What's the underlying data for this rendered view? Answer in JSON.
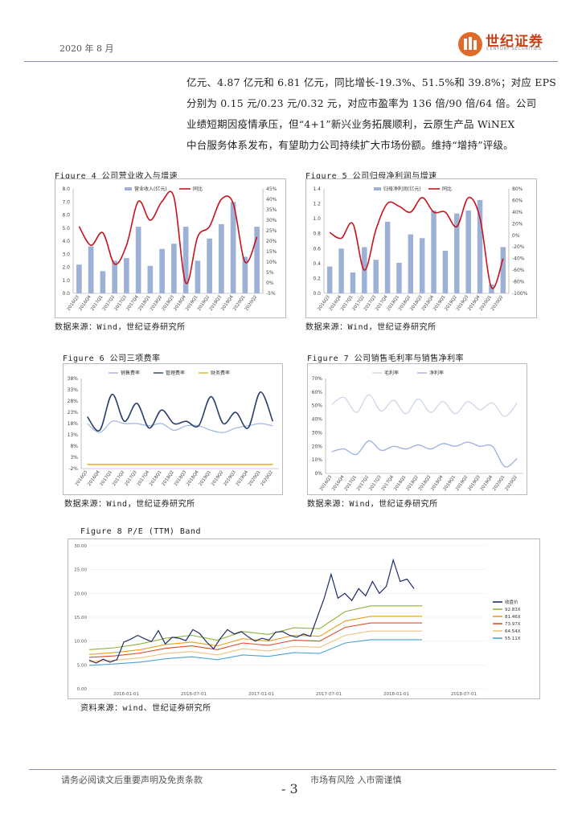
{
  "header": {
    "date": "2020 年 8 月",
    "logo_text": "世纪证券",
    "logo_sub": "CENTURY SECURITIES"
  },
  "paragraph": [
    "亿元、4.87 亿元和 6.81 亿元，同比增长-19.3%、51.5%和 39.8%；对应 EPS",
    "分别为 0.15 元/0.23 元/0.32 元，对应市盈率为 136 倍/90 倍/64 倍。公司",
    "业绩短期因疫情承压，但“4+1”新兴业务拓展顺利，云原生产品 WiNEX",
    "中台服务体系发布，有望助力公司持续扩大市场份额。维持“增持”评级。"
  ],
  "figures": {
    "fig4_title": "Figure 4 公司营业收入与增速",
    "fig5_title": "Figure 5 公司归母净利润与增速",
    "fig6_title": "Figure 6 公司三项费率",
    "fig7_title": "Figure 7 公司销售毛利率与销售净利率",
    "fig8_title": "Figure 8 P/E (TTM) Band",
    "src_a": "数据来源：Wind，世纪证券研究所",
    "src_b": "数据来源：Wind，世纪证券研究所",
    "src_c": "数据来源：Wind，世纪证券研究所",
    "src_d": "数据来源：Wind，世纪证券研究所",
    "src_e": "资料来源：wind、世纪证券研究所"
  },
  "footer": {
    "left": "请务必阅读文后重要声明及免责条款",
    "right": "市场有风险 入市需谨慎",
    "page": "- 3"
  },
  "colors": {
    "bar": "#9db0d6",
    "line_red": "#c8141e",
    "dark_blue": "#2b3f6b",
    "light_blue": "#9fb6e0",
    "gold": "#e6b325"
  },
  "chart_data": [
    {
      "id": "fig4",
      "type": "bar+line",
      "categories": [
        "2016Q3",
        "2016Q4",
        "2017Q1",
        "2017Q2",
        "2017Q3",
        "2017Q4",
        "2018Q1",
        "2018Q2",
        "2018Q3",
        "2018Q4",
        "2019Q1",
        "2019Q2",
        "2019Q3",
        "2019Q4",
        "2020Q1",
        "2020Q2"
      ],
      "series": [
        {
          "name": "营业收入(亿元)",
          "axis": "left",
          "values": [
            2.2,
            3.6,
            1.7,
            2.5,
            2.7,
            5.1,
            2.1,
            3.4,
            3.8,
            5.1,
            2.5,
            4.2,
            5.3,
            7.0,
            2.8,
            5.1
          ]
        },
        {
          "name": "同比",
          "axis": "right",
          "values": [
            27,
            18,
            24,
            9,
            18,
            39,
            30,
            39,
            41,
            0,
            22,
            27,
            40,
            38,
            10,
            22
          ]
        }
      ],
      "ylim_left": [
        0,
        8
      ],
      "yticks_left": [
        "0.0",
        "1.0",
        "2.0",
        "3.0",
        "4.0",
        "5.0",
        "6.0",
        "7.0",
        "8.0"
      ],
      "ylim_right": [
        -5,
        45
      ],
      "yticks_right": [
        "-5%",
        "0%",
        "5%",
        "10%",
        "15%",
        "20%",
        "25%",
        "30%",
        "35%",
        "40%",
        "45%"
      ]
    },
    {
      "id": "fig5",
      "type": "bar+line",
      "categories": [
        "2016Q3",
        "2016Q4",
        "2017Q1",
        "2017Q2",
        "2017Q3",
        "2017Q4",
        "2018Q1",
        "2018Q2",
        "2018Q3",
        "2018Q4",
        "2019Q1",
        "2019Q2",
        "2019Q3",
        "2019Q4",
        "2020Q1",
        "2020Q2"
      ],
      "series": [
        {
          "name": "归母净利润(亿元)",
          "axis": "left",
          "values": [
            0.36,
            0.6,
            0.28,
            0.62,
            0.45,
            0.96,
            0.41,
            0.79,
            0.74,
            1.11,
            0.57,
            1.07,
            1.11,
            1.25,
            0.12,
            0.62
          ]
        },
        {
          "name": "同比",
          "axis": "right",
          "values": [
            5,
            -5,
            20,
            -60,
            10,
            55,
            50,
            40,
            65,
            40,
            40,
            15,
            65,
            30,
            -90,
            -40
          ]
        }
      ],
      "ylim_left": [
        0,
        1.4
      ],
      "yticks_left": [
        "0.0",
        "0.2",
        "0.4",
        "0.6",
        "0.8",
        "1.0",
        "1.2",
        "1.4"
      ],
      "ylim_right": [
        -100,
        80
      ],
      "yticks_right": [
        "-100%",
        "-80%",
        "-60%",
        "-40%",
        "-20%",
        "0%",
        "20%",
        "40%",
        "60%",
        "80%"
      ]
    },
    {
      "id": "fig6",
      "type": "line",
      "categories": [
        "2016Q3",
        "2016Q4",
        "2017Q1",
        "2017Q2",
        "2017Q3",
        "2017Q4",
        "2018Q1",
        "2018Q2",
        "2018Q3",
        "2018Q4",
        "2019Q1",
        "2019Q2",
        "2019Q3",
        "2019Q4",
        "2020Q1",
        "2020Q2"
      ],
      "series": [
        {
          "name": "销售费率",
          "values": [
            18,
            14,
            19,
            18,
            18,
            17,
            18,
            15,
            17,
            17,
            15,
            14,
            16,
            17,
            18,
            17
          ]
        },
        {
          "name": "管理费率",
          "values": [
            21,
            15,
            31,
            19,
            27,
            16,
            24,
            18,
            19,
            17,
            30,
            18,
            23,
            16,
            32,
            19
          ]
        },
        {
          "name": "财务费率",
          "values": [
            -0.2,
            -0.2,
            -0.2,
            -0.2,
            -0.2,
            -0.2,
            -0.2,
            -0.2,
            -0.2,
            -0.2,
            -0.2,
            -0.2,
            -0.2,
            -0.2,
            -0.2,
            -0.2
          ]
        }
      ],
      "ylim": [
        -2,
        38
      ],
      "yticks": [
        "-2%",
        "3%",
        "8%",
        "13%",
        "18%",
        "23%",
        "28%",
        "33%",
        "38%"
      ]
    },
    {
      "id": "fig7",
      "type": "line",
      "categories": [
        "2016Q3",
        "2016Q4",
        "2017Q1",
        "2017Q2",
        "2017Q3",
        "2017Q4",
        "2018Q1",
        "2018Q2",
        "2018Q3",
        "2018Q4",
        "2019Q1",
        "2019Q2",
        "2019Q3",
        "2019Q4",
        "2020Q1",
        "2020Q2"
      ],
      "series": [
        {
          "name": "毛利率",
          "values": [
            51,
            56,
            45,
            58,
            46,
            54,
            44,
            55,
            45,
            53,
            44,
            53,
            47,
            52,
            42,
            52
          ]
        },
        {
          "name": "净利率",
          "values": [
            16,
            18,
            14,
            24,
            17,
            20,
            18,
            21,
            18,
            22,
            20,
            23,
            20,
            20,
            5,
            11
          ]
        }
      ],
      "ylim": [
        0,
        70
      ],
      "yticks": [
        "0%",
        "10%",
        "20%",
        "30%",
        "40%",
        "50%",
        "60%",
        "70%"
      ]
    },
    {
      "id": "fig8",
      "type": "line",
      "x_ticks": [
        "2016-01-01",
        "2016-07-01",
        "2017-01-01",
        "2017-07-01",
        "2018-01-01",
        "2018-07-01"
      ],
      "ylim": [
        0,
        30
      ],
      "yticks": [
        "0.00",
        "5.00",
        "10.00",
        "15.00",
        "20.00",
        "25.00",
        "30.00"
      ],
      "legend": [
        "收盘价",
        "92.83X",
        "81.46X",
        "73.97X",
        "64.54X",
        "55.11X"
      ],
      "series": [
        {
          "name": "92.83X",
          "values": [
            8.2,
            8.6,
            9.4,
            10.6,
            11.2,
            10.2,
            12.0,
            11.4,
            12.8,
            12.6,
            16.2,
            17.4,
            17.4,
            17.4
          ]
        },
        {
          "name": "81.46X",
          "values": [
            7.2,
            7.6,
            8.2,
            9.3,
            9.8,
            9.0,
            10.5,
            10.0,
            11.2,
            11.0,
            14.2,
            15.2,
            15.2,
            15.2
          ]
        },
        {
          "name": "73.97X",
          "values": [
            6.6,
            6.9,
            7.5,
            8.5,
            9.0,
            8.2,
            9.6,
            9.1,
            10.2,
            10.0,
            12.9,
            13.8,
            13.8,
            13.8
          ]
        },
        {
          "name": "64.54X",
          "values": [
            5.7,
            6.0,
            6.5,
            7.4,
            7.8,
            7.1,
            8.4,
            7.9,
            8.9,
            8.7,
            11.2,
            12.1,
            12.1,
            12.1
          ]
        },
        {
          "name": "55.11X",
          "values": [
            4.9,
            5.2,
            5.6,
            6.3,
            6.7,
            6.1,
            7.1,
            6.8,
            7.6,
            7.4,
            9.6,
            10.3,
            10.3,
            10.3
          ]
        },
        {
          "name": "收盘价",
          "values": [
            6.0,
            5.4,
            6.2,
            5.6,
            6.1,
            9.8,
            10.4,
            11.2,
            10.5,
            9.9,
            12.2,
            9.4,
            10.8,
            10.6,
            10.1,
            12.4,
            11.6,
            9.8,
            8.4,
            10.6,
            12.4,
            11.5,
            12.0,
            10.9,
            10.0,
            10.6,
            10.2,
            11.9,
            12.0,
            11.2,
            10.8,
            11.5,
            11.0,
            15.0,
            19.0,
            24.0,
            19.0,
            20.0,
            18.5,
            21.0,
            19.5,
            22.5,
            20.0,
            21.5,
            27.0,
            22.5,
            23.0,
            21.0
          ]
        }
      ]
    }
  ]
}
